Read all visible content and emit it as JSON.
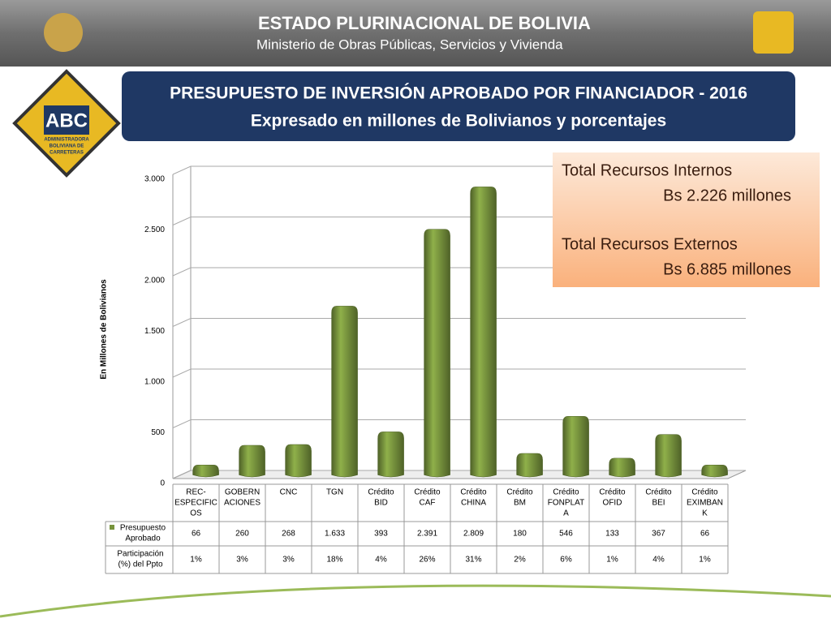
{
  "header": {
    "title": "ESTADO PLURINACIONAL DE BOLIVIA",
    "subtitle": "Ministerio de Obras Públicas, Servicios y Vivienda"
  },
  "logo": {
    "text": "ABC",
    "caption": [
      "ADMINISTRADORA",
      "BOLIVIANA DE",
      "CARRETERAS"
    ]
  },
  "info": [
    "Total Recursos Internos",
    "Bs 2.226 millones",
    "Total Recursos Externos",
    "Bs 6.885 millones"
  ],
  "chart_data": {
    "type": "bar",
    "title": "PRESUPUESTO DE INVERSIÓN APROBADO POR FINANCIADOR - 2016",
    "subtitle": "Expresado en millones de Bolivianos y porcentajes",
    "y_label": "En Millones de Bolivianos",
    "categories": [
      [
        "REC-",
        "ESPECIFIC",
        "OS"
      ],
      [
        "GOBERN",
        "ACIONES"
      ],
      [
        "CNC"
      ],
      [
        "TGN"
      ],
      [
        "Crédito",
        "BID"
      ],
      [
        "Crédito",
        "CAF"
      ],
      [
        "Crédito",
        "CHINA"
      ],
      [
        "Crédito",
        "BM"
      ],
      [
        "Crédito",
        "FONPLAT",
        "A"
      ],
      [
        "Crédito",
        "OFID"
      ],
      [
        "Crédito",
        "BEI"
      ],
      [
        "Crédito",
        "EXIMBAN",
        "K"
      ]
    ],
    "series": [
      {
        "name": [
          "Presupuesto",
          "Aprobado"
        ],
        "color": "#77933c",
        "values": [
          66,
          260,
          268,
          1633,
          393,
          2391,
          2809,
          180,
          546,
          133,
          367,
          66
        ],
        "value_labels": [
          "66",
          "260",
          "268",
          "1.633",
          "393",
          "2.391",
          "2.809",
          "180",
          "546",
          "133",
          "367",
          "66"
        ]
      }
    ],
    "table_row": {
      "name": [
        "Participación",
        "(%) del Ppto"
      ],
      "values": [
        1,
        3,
        3,
        18,
        4,
        26,
        31,
        2,
        6,
        1,
        4,
        1
      ],
      "value_labels": [
        "1%",
        "3%",
        "3%",
        "18%",
        "4%",
        "26%",
        "31%",
        "2%",
        "6%",
        "1%",
        "4%",
        "1%"
      ]
    },
    "ylim": [
      0,
      3000
    ],
    "yticks": [
      0,
      500,
      {
        "value": 1000,
        "label": "1.000"
      },
      {
        "value": 1500,
        "label": "1.500"
      },
      {
        "value": 2000,
        "label": "2.000"
      },
      {
        "value": 2500,
        "label": "2.500"
      },
      {
        "value": 3000,
        "label": "3.000"
      }
    ],
    "grid": true
  }
}
